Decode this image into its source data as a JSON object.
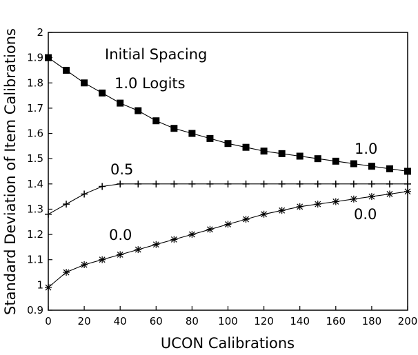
{
  "chart_data": {
    "type": "line",
    "xlabel": "UCON Calibrations",
    "ylabel": "Standard Deviation of Item Calibrations",
    "xlim": [
      0,
      200
    ],
    "ylim": [
      0.9,
      2.0
    ],
    "xticks": [
      0,
      20,
      40,
      60,
      80,
      100,
      120,
      140,
      160,
      180,
      200
    ],
    "yticks": [
      "0.9",
      "1",
      "1.1",
      "1.2",
      "1.3",
      "1.4",
      "1.5",
      "1.6",
      "1.7",
      "1.8",
      "1.9",
      "2"
    ],
    "grid": false,
    "legend": "none",
    "x": [
      0,
      10,
      20,
      30,
      40,
      50,
      60,
      70,
      80,
      90,
      100,
      110,
      120,
      130,
      140,
      150,
      160,
      170,
      180,
      190,
      200
    ],
    "series": [
      {
        "label": "1.0",
        "marker": "square",
        "values": [
          1.9,
          1.85,
          1.8,
          1.76,
          1.72,
          1.69,
          1.65,
          1.62,
          1.6,
          1.58,
          1.56,
          1.545,
          1.53,
          1.52,
          1.51,
          1.5,
          1.49,
          1.48,
          1.47,
          1.46,
          1.45
        ]
      },
      {
        "label": "0.5",
        "marker": "plus",
        "values": [
          1.28,
          1.32,
          1.36,
          1.39,
          1.4,
          1.4,
          1.4,
          1.4,
          1.4,
          1.4,
          1.4,
          1.4,
          1.4,
          1.4,
          1.4,
          1.4,
          1.4,
          1.4,
          1.4,
          1.4,
          1.4
        ]
      },
      {
        "label": "0.0",
        "marker": "asterisk",
        "values": [
          0.99,
          1.05,
          1.08,
          1.1,
          1.12,
          1.14,
          1.16,
          1.18,
          1.2,
          1.22,
          1.24,
          1.26,
          1.28,
          1.295,
          1.31,
          1.32,
          1.33,
          1.34,
          1.35,
          1.36,
          1.37
        ]
      }
    ],
    "annotations": {
      "title_line1": "Initial Spacing",
      "title_line2": "1.0 Logits",
      "label_top_right": "1.0",
      "label_mid": "0.5",
      "label_low_left": "0.0",
      "label_low_right": "0.0"
    }
  }
}
